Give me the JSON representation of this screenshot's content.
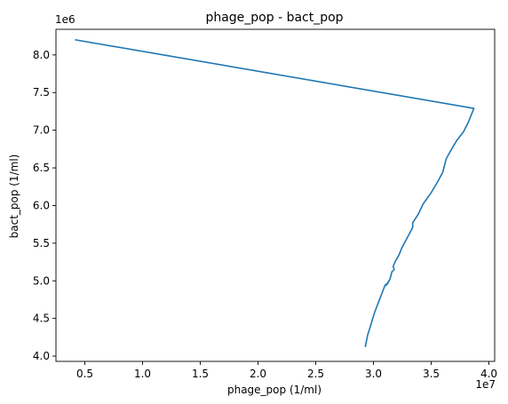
{
  "chart_data": {
    "type": "line",
    "title": "phage_pop - bact_pop",
    "xlabel": "phage_pop (1/ml)",
    "ylabel": "bact_pop (1/ml)",
    "x_offset_label": "1e7",
    "y_offset_label": "1e6",
    "x_scale": 10000000,
    "y_scale": 1000000,
    "xlim": [
      2500000,
      40500000
    ],
    "ylim": [
      3930000,
      8340000
    ],
    "x_ticks": [
      5000000,
      10000000,
      15000000,
      20000000,
      25000000,
      30000000,
      35000000,
      40000000
    ],
    "x_tick_labels": [
      "0.5",
      "1.0",
      "1.5",
      "2.0",
      "2.5",
      "3.0",
      "3.5",
      "4.0"
    ],
    "y_ticks": [
      4000000,
      4500000,
      5000000,
      5500000,
      6000000,
      6500000,
      7000000,
      7500000,
      8000000
    ],
    "y_tick_labels": [
      "4.0",
      "4.5",
      "5.0",
      "5.5",
      "6.0",
      "6.5",
      "7.0",
      "7.5",
      "8.0"
    ],
    "grid": false,
    "color": "#1f77b4",
    "series": [
      {
        "x": [
          4200000,
          38700000,
          38200000,
          37800000,
          37200000,
          36700000,
          36300000,
          36000000,
          35500000,
          35000000,
          34300000,
          33900000,
          33400000,
          33400000,
          33200000,
          32500000,
          32200000,
          31900000,
          31700000,
          31800000,
          31600000,
          31500000,
          31400000,
          31300000,
          31200000,
          31100000,
          31200000,
          31300000,
          31000000,
          30900000,
          30700000,
          30400000,
          30100000,
          29800000,
          29500000,
          29300000
        ],
        "y": [
          8200000,
          7290000,
          7100000,
          6980000,
          6860000,
          6730000,
          6620000,
          6440000,
          6300000,
          6170000,
          6020000,
          5890000,
          5770000,
          5710000,
          5650000,
          5450000,
          5340000,
          5260000,
          5190000,
          5150000,
          5120000,
          5060000,
          5010000,
          4990000,
          4960000,
          4940000,
          4960000,
          4980000,
          4940000,
          4900000,
          4820000,
          4700000,
          4580000,
          4430000,
          4280000,
          4130000
        ]
      }
    ]
  }
}
